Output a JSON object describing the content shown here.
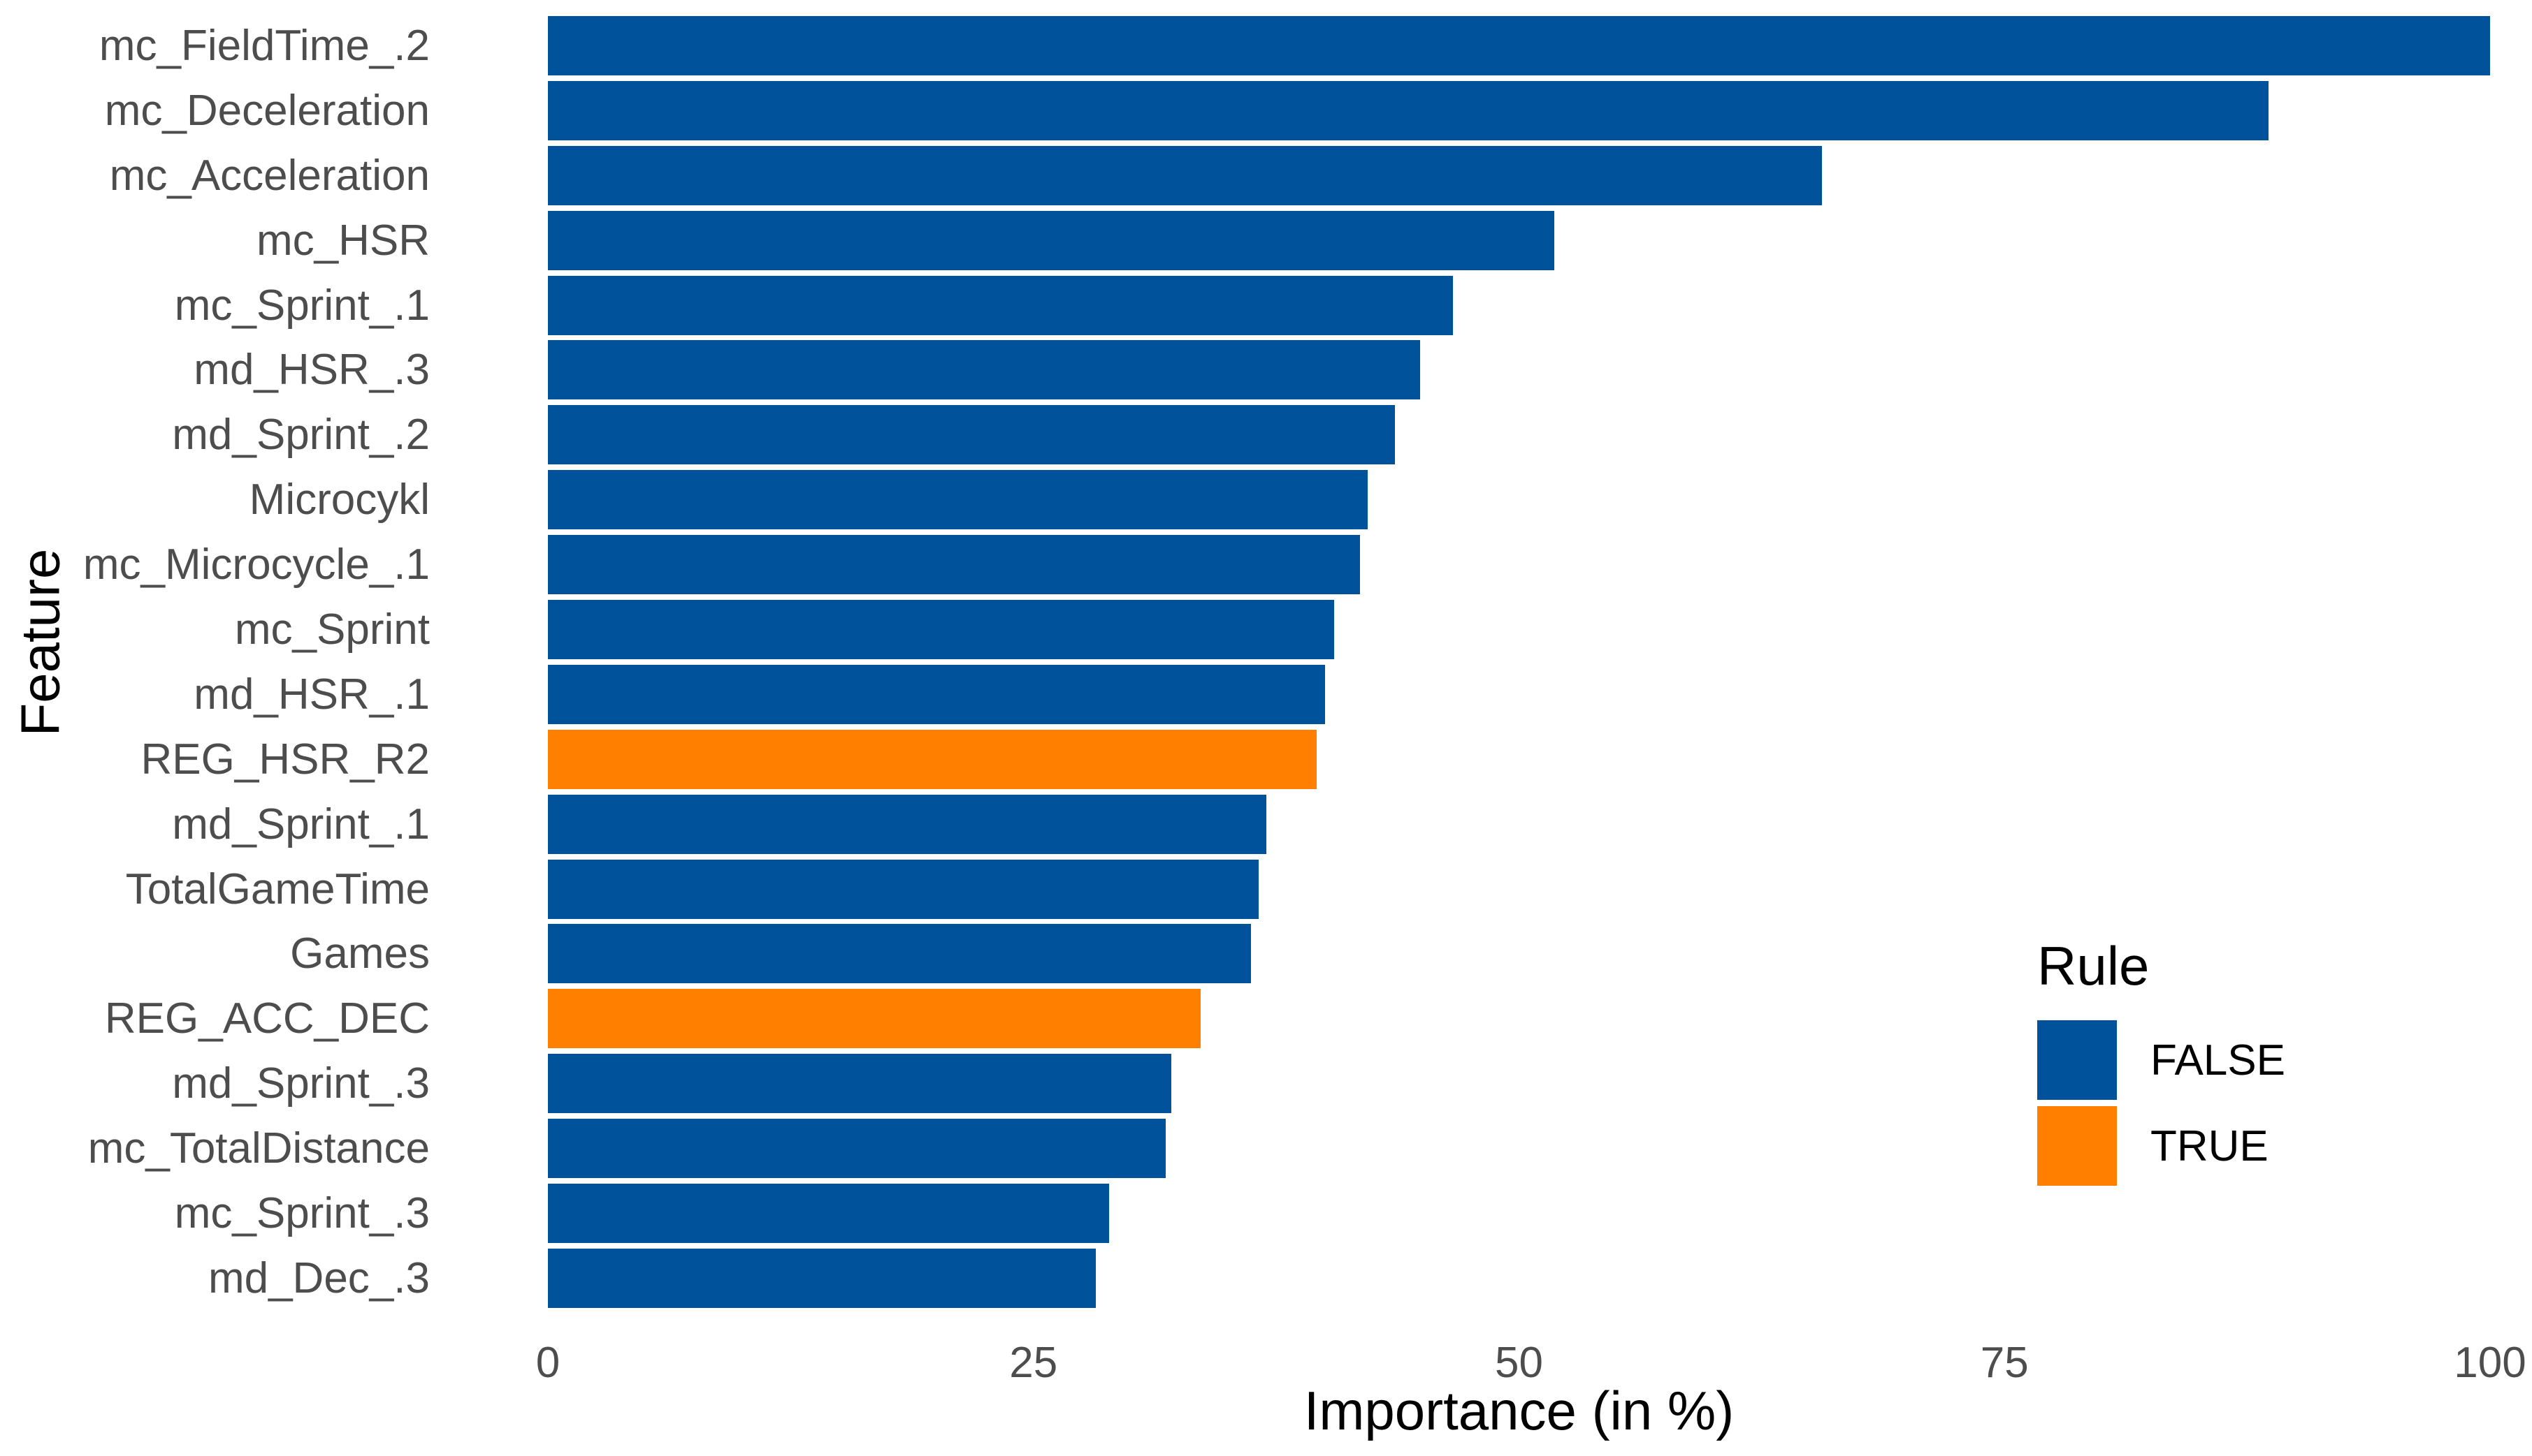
{
  "chart_data": {
    "type": "bar",
    "orientation": "horizontal",
    "title": "",
    "xlabel": "Importance (in %)",
    "ylabel": "Feature",
    "xlim": [
      0,
      100
    ],
    "x_ticks": [
      0,
      25,
      50,
      75,
      100
    ],
    "grid": false,
    "legend_position": "right",
    "categories": [
      "mc_FieldTime_.2",
      "mc_Deceleration",
      "mc_Acceleration",
      "mc_HSR",
      "mc_Sprint_.1",
      "md_HSR_.3",
      "md_Sprint_.2",
      "Microcykl",
      "mc_Microcycle_.1",
      "mc_Sprint",
      "md_HSR_.1",
      "REG_HSR_R2",
      "md_Sprint_.1",
      "TotalGameTime",
      "Games",
      "REG_ACC_DEC",
      "md_Sprint_.3",
      "mc_TotalDistance",
      "mc_Sprint_.3",
      "md_Dec_.3"
    ],
    "values": [
      100,
      88.6,
      65.6,
      51.8,
      46.6,
      44.9,
      43.6,
      42.2,
      41.8,
      40.5,
      40.0,
      39.6,
      37.0,
      36.6,
      36.2,
      33.6,
      32.1,
      31.8,
      28.9,
      28.2
    ],
    "rule": [
      "FALSE",
      "FALSE",
      "FALSE",
      "FALSE",
      "FALSE",
      "FALSE",
      "FALSE",
      "FALSE",
      "FALSE",
      "FALSE",
      "FALSE",
      "TRUE",
      "FALSE",
      "FALSE",
      "FALSE",
      "TRUE",
      "FALSE",
      "FALSE",
      "FALSE",
      "FALSE"
    ]
  },
  "legend": {
    "title": "Rule",
    "items": [
      {
        "label": "FALSE",
        "color": "#00529B"
      },
      {
        "label": "TRUE",
        "color": "#FF7F00"
      }
    ]
  },
  "colors": {
    "false_bar": "#00529B",
    "true_bar": "#FF7F00",
    "axis_text": "#4D4D4D",
    "title_text": "#000000",
    "background": "#FFFFFF"
  }
}
